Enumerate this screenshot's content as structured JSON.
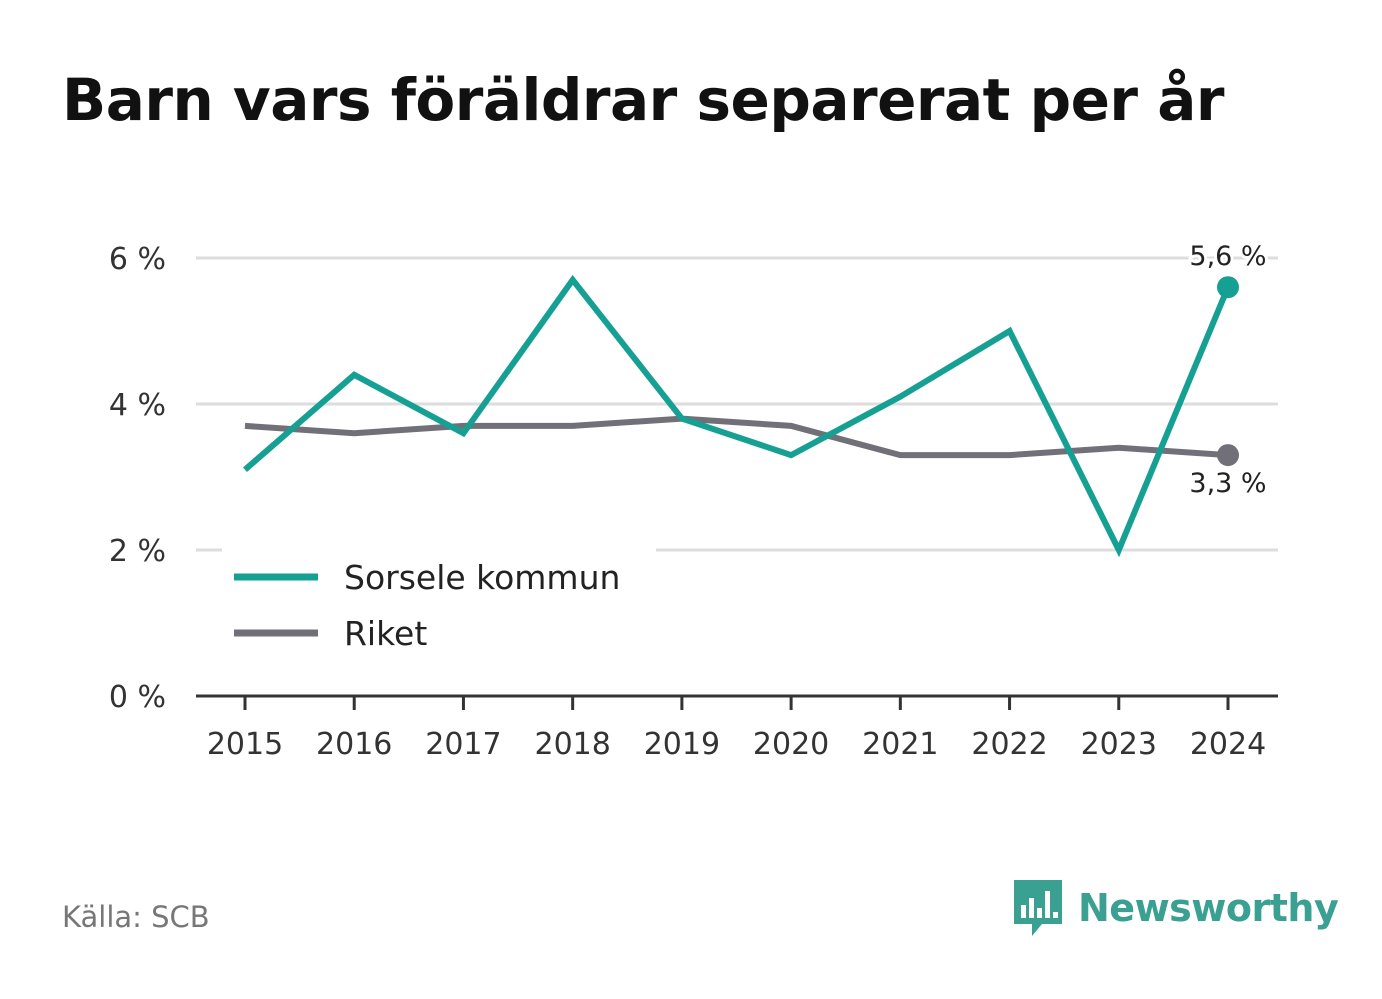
{
  "title": "Barn vars föräldrar separerat per år",
  "source": "Källa: SCB",
  "brand": "Newsworthy",
  "colors": {
    "sorsele": "#16a093",
    "riket": "#717078",
    "grid": "#dddddd",
    "axis": "#333333",
    "brand": "#3aa091"
  },
  "chart_data": {
    "type": "line",
    "title": "Barn vars föräldrar separerat per år",
    "x": [
      "2015",
      "2016",
      "2017",
      "2018",
      "2019",
      "2020",
      "2021",
      "2022",
      "2023",
      "2024"
    ],
    "ylim": [
      0,
      6
    ],
    "yticks": [
      0,
      2,
      4,
      6
    ],
    "ytick_labels": [
      "0 %",
      "2 %",
      "4 %",
      "6 %"
    ],
    "grid": true,
    "legend": "bottom-left",
    "series": [
      {
        "name": "Sorsele kommun",
        "color": "#16a093",
        "values": [
          3.1,
          4.4,
          3.6,
          5.7,
          3.8,
          3.3,
          4.1,
          5.0,
          2.0,
          5.6
        ],
        "end_label": "5,6 %"
      },
      {
        "name": "Riket",
        "color": "#717078",
        "values": [
          3.7,
          3.6,
          3.7,
          3.7,
          3.8,
          3.7,
          3.3,
          3.3,
          3.4,
          3.3
        ],
        "end_label": "3,3 %"
      }
    ]
  }
}
